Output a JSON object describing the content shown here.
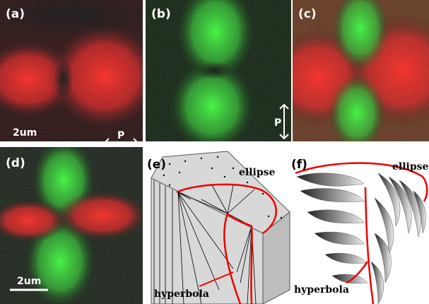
{
  "panels": [
    {
      "label": "(a)",
      "scale_bar": "2um",
      "polarizer": "P"
    },
    {
      "label": "(b)",
      "polarizer": "P"
    },
    {
      "label": "(c)"
    },
    {
      "label": "(d)",
      "scale_bar": "2um"
    },
    {
      "label": "(e)",
      "ellipse": "ellipse",
      "hyperbola": "hyperbola"
    },
    {
      "label": "(f)",
      "ellipse": "ellipse",
      "hyperbola": "hyperbola"
    }
  ]
}
